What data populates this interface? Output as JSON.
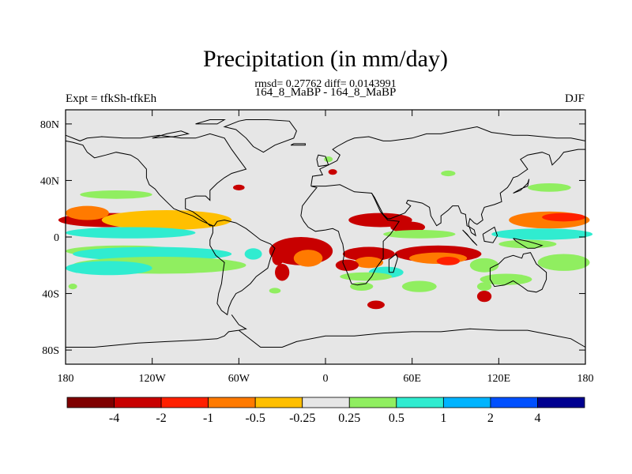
{
  "chart_data": {
    "type": "heatmap",
    "title": "Precipitation (in mm/day)",
    "subtitle": "rmsd= 0.27762 diff= 0.0143991",
    "left_label": "Expt = tfkSh-tfkEh",
    "center_label": "164_8_MaBP - 164_8_MaBP",
    "right_label": "DJF",
    "x_axis": {
      "range": [
        -180,
        180
      ],
      "ticks": [
        {
          "value": -180,
          "label": "180"
        },
        {
          "value": -120,
          "label": "120W"
        },
        {
          "value": -60,
          "label": "60W"
        },
        {
          "value": 0,
          "label": "0"
        },
        {
          "value": 60,
          "label": "60E"
        },
        {
          "value": 120,
          "label": "120E"
        },
        {
          "value": 180,
          "label": "180"
        }
      ]
    },
    "y_axis": {
      "range": [
        -90,
        90
      ],
      "ticks": [
        {
          "value": 80,
          "label": "80N"
        },
        {
          "value": 40,
          "label": "40N"
        },
        {
          "value": 0,
          "label": "0"
        },
        {
          "value": -40,
          "label": "40S"
        },
        {
          "value": -80,
          "label": "80S"
        }
      ]
    },
    "background_color": "#e6e6e6",
    "colorbar": {
      "colors": [
        "#7f0000",
        "#c80000",
        "#ff2000",
        "#ff7a00",
        "#ffbf00",
        "#e6e6e6",
        "#90ee60",
        "#30ecd0",
        "#00b4ff",
        "#0050ff",
        "#000090"
      ],
      "labels": [
        "-4",
        "-2",
        "-1",
        "-0.5",
        "-0.25",
        "0.25",
        "0.5",
        "1",
        "2",
        "4"
      ]
    },
    "anomalies": [
      {
        "lon": -150,
        "lat": 12,
        "rlon": 35,
        "rlat": 5,
        "level": 1.5
      },
      {
        "lon": -125,
        "lat": 10,
        "rlon": 20,
        "rlat": 4,
        "level": 2.5
      },
      {
        "lon": -110,
        "lat": 12,
        "rlon": 45,
        "rlat": 7,
        "level": 4.5
      },
      {
        "lon": -165,
        "lat": 17,
        "rlon": 15,
        "rlat": 5,
        "level": 3.5
      },
      {
        "lon": -135,
        "lat": 3,
        "rlon": 45,
        "rlat": 4,
        "level": 7.5
      },
      {
        "lon": -140,
        "lat": -10,
        "rlon": 40,
        "rlat": 4,
        "level": 6.5
      },
      {
        "lon": -120,
        "lat": -12,
        "rlon": 55,
        "rlat": 5,
        "level": 7.5
      },
      {
        "lon": -115,
        "lat": -20,
        "rlon": 60,
        "rlat": 6,
        "level": 6.5
      },
      {
        "lon": -150,
        "lat": -22,
        "rlon": 30,
        "rlat": 5,
        "level": 7.5
      },
      {
        "lon": -145,
        "lat": 30,
        "rlon": 25,
        "rlat": 3,
        "level": 6.5
      },
      {
        "lon": -175,
        "lat": -35,
        "rlon": 3,
        "rlat": 2,
        "level": 6.5
      },
      {
        "lon": -17,
        "lat": -10,
        "rlon": 22,
        "rlat": 10,
        "level": 1.5
      },
      {
        "lon": -12,
        "lat": -15,
        "rlon": 10,
        "rlat": 6,
        "level": 3.5
      },
      {
        "lon": -33,
        "lat": -15,
        "rlon": 4,
        "rlat": 5,
        "level": 1.5
      },
      {
        "lon": -30,
        "lat": -25,
        "rlon": 5,
        "rlat": 6,
        "level": 1.5
      },
      {
        "lon": -50,
        "lat": -12,
        "rlon": 6,
        "rlat": 4,
        "level": 7.5
      },
      {
        "lon": -35,
        "lat": -38,
        "rlon": 4,
        "rlat": 2,
        "level": 6.5
      },
      {
        "lon": 38,
        "lat": 12,
        "rlon": 22,
        "rlat": 5,
        "level": 1.5
      },
      {
        "lon": 57,
        "lat": 7,
        "rlon": 12,
        "rlat": 4,
        "level": 1.5
      },
      {
        "lon": 30,
        "lat": -12,
        "rlon": 18,
        "rlat": 5,
        "level": 1.5
      },
      {
        "lon": 30,
        "lat": -18,
        "rlon": 10,
        "rlat": 4,
        "level": 3.5
      },
      {
        "lon": 15,
        "lat": -20,
        "rlon": 8,
        "rlat": 4,
        "level": 1.5
      },
      {
        "lon": 42,
        "lat": -25,
        "rlon": 12,
        "rlat": 4,
        "level": 7.5
      },
      {
        "lon": 28,
        "lat": -28,
        "rlon": 18,
        "rlat": 3,
        "level": 6.5
      },
      {
        "lon": 78,
        "lat": -12,
        "rlon": 30,
        "rlat": 6,
        "level": 1.5
      },
      {
        "lon": 78,
        "lat": -15,
        "rlon": 20,
        "rlat": 4,
        "level": 3.5
      },
      {
        "lon": 85,
        "lat": -17,
        "rlon": 8,
        "rlat": 3,
        "level": 2.5
      },
      {
        "lon": 65,
        "lat": 2,
        "rlon": 25,
        "rlat": 3,
        "level": 6.5
      },
      {
        "lon": 65,
        "lat": -35,
        "rlon": 12,
        "rlat": 4,
        "level": 6.5
      },
      {
        "lon": 25,
        "lat": -35,
        "rlon": 8,
        "rlat": 3,
        "level": 6.5
      },
      {
        "lon": 35,
        "lat": -48,
        "rlon": 6,
        "rlat": 3,
        "level": 1.5
      },
      {
        "lon": 110,
        "lat": -42,
        "rlon": 5,
        "rlat": 4,
        "level": 1.5
      },
      {
        "lon": 110,
        "lat": -35,
        "rlon": 5,
        "rlat": 3,
        "level": 6.5
      },
      {
        "lon": 125,
        "lat": -30,
        "rlon": 18,
        "rlat": 4,
        "level": 6.5
      },
      {
        "lon": 110,
        "lat": -20,
        "rlon": 10,
        "rlat": 5,
        "level": 6.5
      },
      {
        "lon": 155,
        "lat": 12,
        "rlon": 28,
        "rlat": 6,
        "level": 3.5
      },
      {
        "lon": 165,
        "lat": 14,
        "rlon": 15,
        "rlat": 3,
        "level": 2.5
      },
      {
        "lon": 150,
        "lat": 2,
        "rlon": 35,
        "rlat": 4,
        "level": 7.5
      },
      {
        "lon": 140,
        "lat": -5,
        "rlon": 20,
        "rlat": 3,
        "level": 6.5
      },
      {
        "lon": 165,
        "lat": -18,
        "rlon": 18,
        "rlat": 6,
        "level": 6.5
      },
      {
        "lon": 155,
        "lat": 35,
        "rlon": 15,
        "rlat": 3,
        "level": 6.5
      },
      {
        "lon": 5,
        "lat": 46,
        "rlon": 3,
        "rlat": 2,
        "level": 1.5
      },
      {
        "lon": 85,
        "lat": 45,
        "rlon": 5,
        "rlat": 2,
        "level": 6.5
      },
      {
        "lon": -60,
        "lat": 35,
        "rlon": 4,
        "rlat": 2,
        "level": 1.5
      },
      {
        "lon": 2,
        "lat": 55,
        "rlon": 3,
        "rlat": 2,
        "level": 6.5
      }
    ]
  }
}
